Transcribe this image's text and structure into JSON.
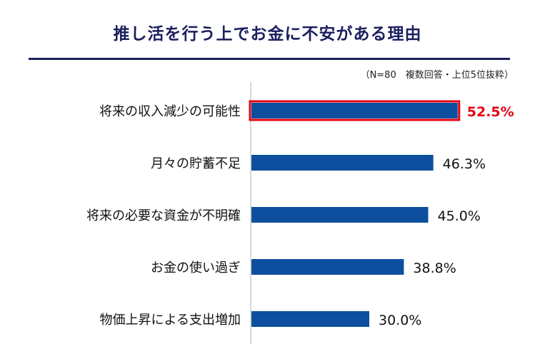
{
  "chart_data": {
    "type": "bar",
    "orientation": "horizontal",
    "title": "推し活を行う上でお金に不安がある理由",
    "note": "（N=80　複数回答・上位5位抜粋）",
    "categories": [
      "将来の収入減少の可能性",
      "月々の貯蓄不足",
      "将来の必要な資金が不明確",
      "お金の使い過ぎ",
      "物価上昇による支出増加"
    ],
    "values": [
      52.5,
      46.3,
      45.0,
      38.8,
      30.0
    ],
    "value_labels": [
      "52.5%",
      "46.3%",
      "45.0%",
      "38.8%",
      "30.0%"
    ],
    "highlight_index": 0,
    "xlim": [
      0,
      60
    ],
    "grid": false,
    "legend": "none",
    "colors": {
      "bar": "#0d4f9e",
      "highlight_border": "#e60012",
      "highlight_label": "#e60012",
      "title": "#1b1f5e",
      "axis": "#b0b0b0"
    }
  }
}
